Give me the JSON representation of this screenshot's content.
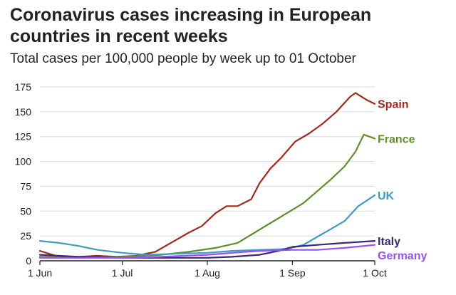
{
  "title": "Coronavirus cases increasing in European countries in recent weeks",
  "subtitle": "Total cases per 100,000 people by week up to 01 October",
  "colors": {
    "Spain": "#a2291f",
    "France": "#5e8f2b",
    "UK": "#3e9cbf",
    "Italy": "#3a2870",
    "Germany": "#9b4ff5",
    "grid": "#dcdcdc",
    "axis": "#222222"
  },
  "chart_data": {
    "type": "line",
    "title": "Coronavirus cases increasing in European countries in recent weeks",
    "subtitle": "Total cases per 100,000 people by week up to 01 October",
    "xlabel": "",
    "ylabel": "",
    "xlim": [
      "2020-06-01",
      "2020-10-01"
    ],
    "ylim": [
      0,
      175
    ],
    "yticks": [
      0,
      25,
      50,
      75,
      100,
      125,
      150,
      175
    ],
    "xticks": [
      {
        "date": "2020-06-01",
        "label": "1 Jun"
      },
      {
        "date": "2020-07-01",
        "label": "1 Jul"
      },
      {
        "date": "2020-08-01",
        "label": "1 Aug"
      },
      {
        "date": "2020-09-01",
        "label": "1 Sep"
      },
      {
        "date": "2020-10-01",
        "label": "1 Oct"
      }
    ],
    "grid": true,
    "legend": "direct labels at line ends",
    "series": [
      {
        "name": "Spain",
        "x": [
          "2020-06-01",
          "2020-06-08",
          "2020-06-15",
          "2020-06-22",
          "2020-06-29",
          "2020-07-06",
          "2020-07-13",
          "2020-07-20",
          "2020-07-25",
          "2020-07-30",
          "2020-08-04",
          "2020-08-08",
          "2020-08-12",
          "2020-08-17",
          "2020-08-20",
          "2020-08-24",
          "2020-08-28",
          "2020-09-02",
          "2020-09-07",
          "2020-09-12",
          "2020-09-17",
          "2020-09-22",
          "2020-09-24",
          "2020-09-28",
          "2020-10-01"
        ],
        "values": [
          10,
          4,
          4,
          5,
          4,
          5,
          9,
          20,
          28,
          35,
          48,
          55,
          55,
          62,
          78,
          93,
          104,
          120,
          128,
          138,
          150,
          165,
          169,
          162,
          158
        ]
      },
      {
        "name": "France",
        "x": [
          "2020-06-01",
          "2020-06-15",
          "2020-07-01",
          "2020-07-15",
          "2020-07-25",
          "2020-08-04",
          "2020-08-12",
          "2020-08-18",
          "2020-08-24",
          "2020-08-30",
          "2020-09-05",
          "2020-09-10",
          "2020-09-15",
          "2020-09-20",
          "2020-09-24",
          "2020-09-27",
          "2020-10-01"
        ],
        "values": [
          4,
          3,
          4,
          6,
          9,
          13,
          18,
          28,
          38,
          48,
          58,
          70,
          82,
          95,
          110,
          127,
          123
        ]
      },
      {
        "name": "UK",
        "x": [
          "2020-06-01",
          "2020-06-08",
          "2020-06-15",
          "2020-06-22",
          "2020-07-01",
          "2020-07-10",
          "2020-07-20",
          "2020-08-01",
          "2020-08-10",
          "2020-08-20",
          "2020-08-30",
          "2020-09-05",
          "2020-09-10",
          "2020-09-15",
          "2020-09-20",
          "2020-09-25",
          "2020-10-01"
        ],
        "values": [
          20,
          18,
          15,
          11,
          8,
          6,
          7,
          8,
          10,
          11,
          12,
          16,
          24,
          32,
          40,
          55,
          66
        ]
      },
      {
        "name": "Italy",
        "x": [
          "2020-06-01",
          "2020-06-15",
          "2020-07-01",
          "2020-07-15",
          "2020-08-01",
          "2020-08-10",
          "2020-08-20",
          "2020-08-27",
          "2020-09-01",
          "2020-09-10",
          "2020-09-20",
          "2020-10-01"
        ],
        "values": [
          6,
          4,
          3,
          3,
          3,
          4,
          6,
          10,
          14,
          16,
          18,
          20
        ]
      },
      {
        "name": "Germany",
        "x": [
          "2020-06-01",
          "2020-06-15",
          "2020-07-01",
          "2020-07-15",
          "2020-08-01",
          "2020-08-10",
          "2020-08-20",
          "2020-09-01",
          "2020-09-10",
          "2020-09-20",
          "2020-10-01"
        ],
        "values": [
          3,
          3,
          3,
          4,
          6,
          8,
          10,
          11,
          11,
          13,
          16
        ]
      }
    ]
  }
}
